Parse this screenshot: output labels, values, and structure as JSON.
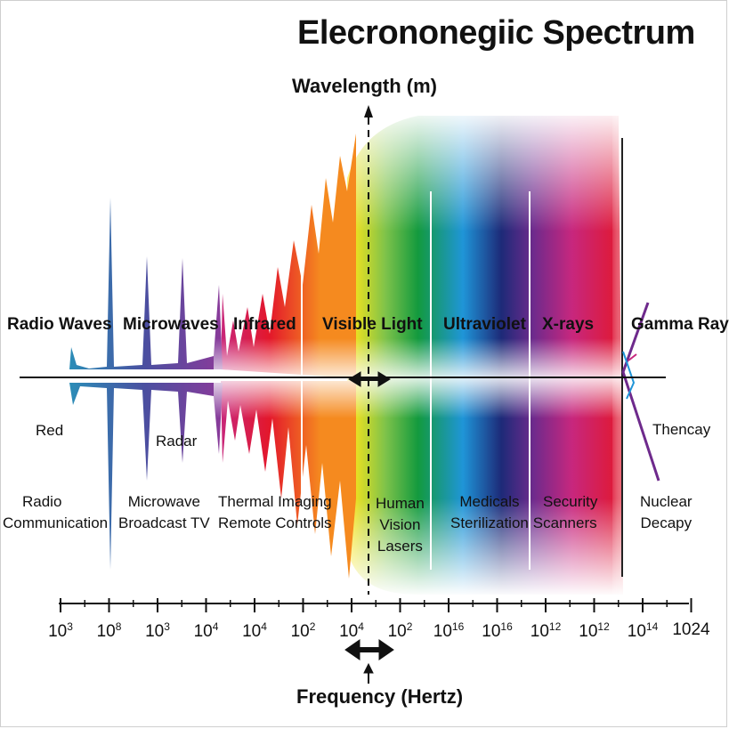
{
  "title": "Elecrononegiic Spectrum",
  "wavelength_label": "Wavelength (m)",
  "frequency_label": "Frequency (Hertz)",
  "bands": [
    {
      "label": "Radio Waves"
    },
    {
      "label": "Microwaves"
    },
    {
      "label": "Infrared"
    },
    {
      "label": "Visible Light"
    },
    {
      "label": "Ultraviolet"
    },
    {
      "label": "X-rays"
    },
    {
      "label": "Gamma Ray"
    }
  ],
  "sub_labels": {
    "red": "Red",
    "radar": "Radar",
    "thencay": "Thencay"
  },
  "uses": {
    "radio": [
      "Radio",
      "Communication"
    ],
    "microwave": [
      "Microwave",
      "Broadcast TV"
    ],
    "infrared": [
      "Thermal Imaging",
      "Remote Controls"
    ],
    "visible": [
      "Human",
      "Vision",
      "Lasers"
    ],
    "ultraviolet": [
      "Medicals",
      "Sterilization"
    ],
    "xrays": [
      "Security",
      "Scanners"
    ],
    "gamma": [
      "Nuclear",
      "Decapy"
    ]
  },
  "ticks": [
    {
      "base": "10",
      "exp": "3"
    },
    {
      "base": "10",
      "exp": "8"
    },
    {
      "base": "10",
      "exp": "3"
    },
    {
      "base": "10",
      "exp": "4"
    },
    {
      "base": "10",
      "exp": "4"
    },
    {
      "base": "10",
      "exp": "2"
    },
    {
      "base": "10",
      "exp": "4"
    },
    {
      "base": "10",
      "exp": "2"
    },
    {
      "base": "10",
      "exp": "16"
    },
    {
      "base": "10",
      "exp": "16"
    },
    {
      "base": "10",
      "exp": "12"
    },
    {
      "base": "10",
      "exp": "12"
    },
    {
      "base": "10",
      "exp": "14"
    },
    {
      "base": "1024",
      "exp": ""
    }
  ],
  "colors": {
    "red": "#e3172b",
    "orange": "#f58a1f",
    "yellow": "#fbe51b",
    "green": "#139a3e",
    "blue": "#1f95d8",
    "navy": "#1d2a78",
    "purple": "#6e2a8c",
    "magenta": "#c7277e",
    "teal": "#2a8fb8"
  }
}
